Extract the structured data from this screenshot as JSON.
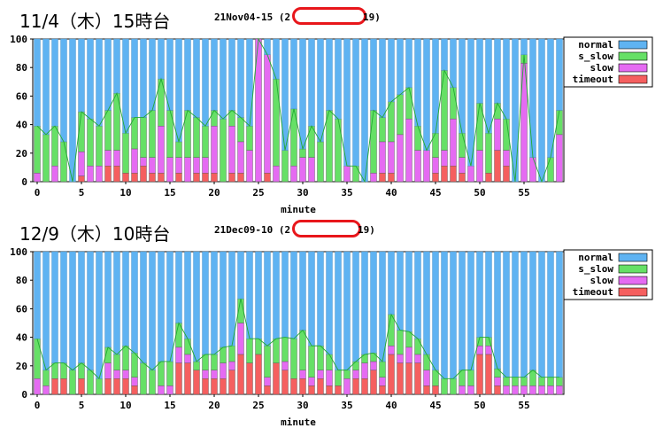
{
  "legend_colors": {
    "normal": "#5fb3f2",
    "s_slow": "#66e066",
    "slow": "#e56bf2",
    "timeout": "#f55f5f"
  },
  "line_color": "#22aa33",
  "panels": [
    {
      "title": "11/4（木）15時台",
      "subtitle_left": "21Nov04-15 (2",
      "subtitle_right": "19)"
    },
    {
      "title": "12/9（木）10時台",
      "subtitle_left": "21Dec09-10 (2",
      "subtitle_right": "19)"
    }
  ],
  "chart_data": [
    {
      "type": "bar",
      "stacked": true,
      "xlabel": "minute",
      "ylabel": "",
      "ylim": [
        0,
        100
      ],
      "x": [
        0,
        1,
        2,
        3,
        4,
        5,
        6,
        7,
        8,
        9,
        10,
        11,
        12,
        13,
        14,
        15,
        16,
        17,
        18,
        19,
        20,
        21,
        22,
        23,
        24,
        25,
        26,
        27,
        28,
        29,
        30,
        31,
        32,
        33,
        34,
        35,
        36,
        37,
        38,
        39,
        40,
        41,
        42,
        43,
        44,
        45,
        46,
        47,
        48,
        49,
        50,
        51,
        52,
        53,
        54,
        55,
        56,
        57,
        58,
        59
      ],
      "xticks": [
        "0",
        "5",
        "10",
        "15",
        "20",
        "25",
        "30",
        "35",
        "40",
        "45",
        "50",
        "55"
      ],
      "yticks": [
        "0",
        "20",
        "40",
        "60",
        "80",
        "100"
      ],
      "legend": [
        "normal",
        "s_slow",
        "slow",
        "timeout"
      ],
      "legend_position": "top-right",
      "series": [
        {
          "name": "timeout",
          "values": [
            0,
            0,
            0,
            0,
            0,
            4,
            0,
            0,
            11,
            11,
            6,
            6,
            11,
            6,
            6,
            0,
            6,
            0,
            6,
            6,
            6,
            0,
            6,
            6,
            0,
            0,
            6,
            0,
            0,
            0,
            0,
            0,
            0,
            0,
            0,
            0,
            0,
            0,
            0,
            6,
            6,
            0,
            0,
            0,
            0,
            6,
            11,
            11,
            6,
            0,
            0,
            6,
            22,
            11,
            0,
            0,
            0,
            0,
            0,
            0
          ]
        },
        {
          "name": "slow",
          "values": [
            6,
            0,
            11,
            0,
            0,
            17,
            11,
            11,
            11,
            11,
            0,
            17,
            6,
            11,
            33,
            17,
            11,
            17,
            11,
            11,
            33,
            0,
            33,
            22,
            22,
            100,
            83,
            11,
            0,
            11,
            17,
            17,
            0,
            0,
            0,
            11,
            0,
            0,
            6,
            22,
            22,
            33,
            44,
            22,
            22,
            11,
            11,
            33,
            11,
            11,
            22,
            0,
            22,
            11,
            0,
            83,
            17,
            0,
            0,
            33
          ]
        },
        {
          "name": "s_slow",
          "values": [
            33,
            33,
            28,
            28,
            0,
            28,
            33,
            28,
            28,
            40,
            28,
            22,
            28,
            33,
            33,
            33,
            11,
            33,
            28,
            22,
            11,
            44,
            11,
            17,
            17,
            0,
            0,
            61,
            22,
            40,
            6,
            22,
            28,
            50,
            44,
            0,
            11,
            0,
            44,
            17,
            28,
            28,
            22,
            17,
            0,
            17,
            56,
            22,
            17,
            0,
            33,
            28,
            11,
            22,
            0,
            6,
            0,
            0,
            17,
            17
          ]
        }
      ]
    },
    {
      "type": "bar",
      "stacked": true,
      "xlabel": "minute",
      "ylabel": "",
      "ylim": [
        0,
        100
      ],
      "x": [
        0,
        1,
        2,
        3,
        4,
        5,
        6,
        7,
        8,
        9,
        10,
        11,
        12,
        13,
        14,
        15,
        16,
        17,
        18,
        19,
        20,
        21,
        22,
        23,
        24,
        25,
        26,
        27,
        28,
        29,
        30,
        31,
        32,
        33,
        34,
        35,
        36,
        37,
        38,
        39,
        40,
        41,
        42,
        43,
        44,
        45,
        46,
        47,
        48,
        49,
        50,
        51,
        52,
        53,
        54,
        55,
        56,
        57,
        58,
        59
      ],
      "xticks": [
        "0",
        "5",
        "10",
        "15",
        "20",
        "25",
        "30",
        "35",
        "40",
        "45",
        "50",
        "55"
      ],
      "yticks": [
        "0",
        "20",
        "40",
        "60",
        "80",
        "100"
      ],
      "legend": [
        "normal",
        "s_slow",
        "slow",
        "timeout"
      ],
      "legend_position": "top-right",
      "series": [
        {
          "name": "timeout",
          "values": [
            0,
            0,
            11,
            11,
            0,
            11,
            0,
            0,
            11,
            11,
            11,
            6,
            0,
            0,
            0,
            0,
            22,
            22,
            17,
            11,
            11,
            11,
            17,
            28,
            22,
            28,
            6,
            22,
            17,
            11,
            11,
            6,
            11,
            6,
            6,
            0,
            11,
            11,
            17,
            6,
            28,
            22,
            22,
            22,
            6,
            6,
            0,
            0,
            0,
            0,
            28,
            28,
            6,
            0,
            0,
            0,
            0,
            0,
            0,
            0
          ]
        },
        {
          "name": "slow",
          "values": [
            11,
            6,
            0,
            0,
            0,
            0,
            0,
            0,
            11,
            6,
            6,
            6,
            0,
            0,
            6,
            6,
            11,
            6,
            0,
            6,
            6,
            11,
            6,
            22,
            0,
            0,
            6,
            0,
            6,
            0,
            6,
            6,
            6,
            11,
            0,
            11,
            6,
            11,
            6,
            6,
            6,
            6,
            11,
            6,
            11,
            0,
            0,
            0,
            6,
            6,
            6,
            6,
            6,
            6,
            6,
            6,
            6,
            6,
            6,
            6
          ]
        },
        {
          "name": "s_slow",
          "values": [
            28,
            11,
            11,
            11,
            17,
            11,
            17,
            11,
            11,
            11,
            17,
            17,
            22,
            17,
            17,
            17,
            17,
            11,
            6,
            11,
            11,
            11,
            11,
            17,
            17,
            11,
            22,
            17,
            17,
            28,
            28,
            22,
            17,
            11,
            11,
            6,
            6,
            6,
            6,
            11,
            22,
            17,
            11,
            11,
            11,
            11,
            11,
            11,
            11,
            11,
            6,
            6,
            6,
            6,
            6,
            6,
            11,
            6,
            6,
            6
          ]
        }
      ]
    }
  ]
}
